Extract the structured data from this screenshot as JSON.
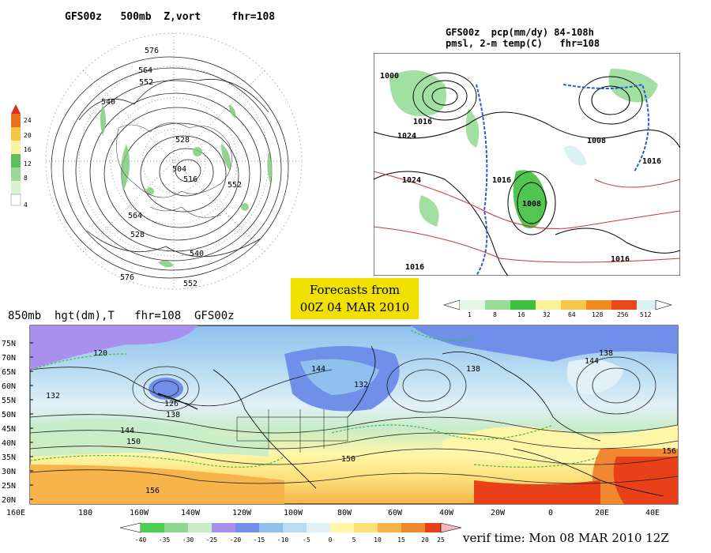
{
  "panels": {
    "vort": {
      "title": "GFS00z   500mb  Z,vort     fhr=108",
      "colorbar_ticks": [
        "24",
        "20",
        "16",
        "12",
        "8",
        "4"
      ],
      "contour_labels": [
        "576",
        "564",
        "552",
        "540",
        "528",
        "516",
        "504",
        "552",
        "564",
        "576",
        "552",
        "540",
        "528"
      ]
    },
    "pcp": {
      "title_line1": "GFS00z  pcp(mm/dy) 84-108h",
      "title_line2": "pmsl, 2-m temp(C)   fhr=108",
      "colorbar_ticks": [
        "1",
        "8",
        "16",
        "32",
        "64",
        "128",
        "256",
        "512"
      ],
      "pressure_labels": [
        "1000",
        "1016",
        "1024",
        "1024",
        "1008",
        "1016",
        "1016",
        "1016",
        "1008",
        "1016"
      ]
    },
    "hgt": {
      "title": "850mb  hgt(dm),T   fhr=108  GFS00z",
      "lat_ticks": [
        "75N",
        "70N",
        "65N",
        "60N",
        "55N",
        "50N",
        "45N",
        "40N",
        "35N",
        "30N",
        "25N",
        "20N"
      ],
      "lon_ticks": [
        "160E",
        "180",
        "160W",
        "140W",
        "120W",
        "100W",
        "80W",
        "60W",
        "40W",
        "20W",
        "0",
        "20E",
        "40E"
      ],
      "colorbar_ticks": [
        "-40",
        "-35",
        "-30",
        "-25",
        "-20",
        "-15",
        "-10",
        "-5",
        "0",
        "5",
        "10",
        "15",
        "20",
        "25"
      ],
      "contour_labels": [
        "120",
        "132",
        "138",
        "144",
        "150",
        "156",
        "126",
        "132",
        "138",
        "144",
        "150",
        "156",
        "138",
        "144"
      ]
    }
  },
  "forecast_box": {
    "line1": "Forecasts from",
    "line2": "00Z 04 MAR 2010"
  },
  "verif_time": "verif time: Mon 08 MAR 2010 12Z",
  "colors": {
    "vort_scale": [
      "#d9f2d0",
      "#9ad89a",
      "#5cbf5c",
      "#f7f3a0",
      "#f5c646",
      "#e8731f",
      "#d7301f"
    ],
    "pcp_scale": [
      "#e6f5e6",
      "#98dc98",
      "#3fbf3f",
      "#fbf39a",
      "#f5c84c",
      "#ef8a1f",
      "#e84a1a",
      "#d8f1f5"
    ],
    "temp_scale": [
      "#4fcf4f",
      "#8ed88e",
      "#c8ecc8",
      "#a890ec",
      "#6f8fe8",
      "#8fc0ee",
      "#b8dcf2",
      "#e1f1f7",
      "#ffffff",
      "#fff6a8",
      "#fbe07a",
      "#f6b44a",
      "#f08830",
      "#e84018"
    ]
  }
}
